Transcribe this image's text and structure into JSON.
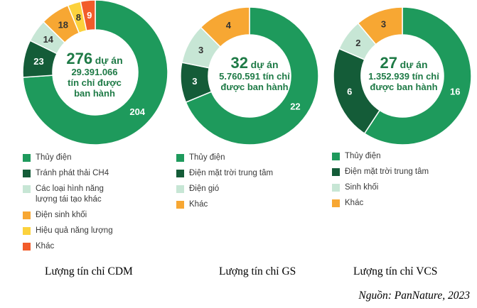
{
  "colors": {
    "green": "#1e9a5c",
    "dark_green": "#145c38",
    "light_green": "#c7e6d5",
    "orange": "#f7a733",
    "yellow": "#fcd23d",
    "red_orange": "#f25c2a",
    "center_text": "#1e7a46"
  },
  "chart_data": [
    {
      "type": "pie",
      "donut": true,
      "center": {
        "count": "276",
        "unit": "dự án",
        "line2": "29.391.066",
        "line3": "tín chỉ được",
        "line4": "ban hành"
      },
      "slices": [
        {
          "label": "Thủy điện",
          "value": 204,
          "color": "#1e9a5c"
        },
        {
          "label": "Tránh phát thải CH4",
          "value": 23,
          "color": "#145c38"
        },
        {
          "label": "Các loại hình năng lượng tái tạo khác",
          "value": 14,
          "color": "#c7e6d5"
        },
        {
          "label": "Điện sinh khối",
          "value": 18,
          "color": "#f7a733"
        },
        {
          "label": "Hiệu quả năng lượng",
          "value": 8,
          "color": "#fcd23d"
        },
        {
          "label": "Khác",
          "value": 9,
          "color": "#f25c2a"
        }
      ],
      "legend": [
        "Thủy điện",
        "Tránh phát thải CH4",
        "Các loại hình năng lượng tái tạo khác",
        "Điện sinh khối",
        "Hiệu quả năng lượng",
        "Khác"
      ],
      "caption": "Lượng tín chỉ CDM"
    },
    {
      "type": "pie",
      "donut": true,
      "center": {
        "count": "32",
        "unit": "dự án",
        "line2": "5.760.591 tín chỉ",
        "line3": "được ban hành"
      },
      "slices": [
        {
          "label": "Thủy điện",
          "value": 22,
          "color": "#1e9a5c"
        },
        {
          "label": "Điện mặt trời trung tâm",
          "value": 3,
          "color": "#145c38"
        },
        {
          "label": "Điện gió",
          "value": 3,
          "color": "#c7e6d5"
        },
        {
          "label": "Khác",
          "value": 4,
          "color": "#f7a733"
        }
      ],
      "legend": [
        "Thủy điện",
        "Điện mặt trời trung tâm",
        "Điện gió",
        "Khác"
      ],
      "caption": "Lượng tín chỉ GS"
    },
    {
      "type": "pie",
      "donut": true,
      "center": {
        "count": "27",
        "unit": "dự án",
        "line2": "1.352.939 tín chỉ",
        "line3": "được ban hành"
      },
      "slices": [
        {
          "label": "Thủy điện",
          "value": 16,
          "color": "#1e9a5c"
        },
        {
          "label": "Điện mặt trời trung tâm",
          "value": 6,
          "color": "#145c38"
        },
        {
          "label": "Sinh khối",
          "value": 2,
          "color": "#c7e6d5"
        },
        {
          "label": "Khác",
          "value": 3,
          "color": "#f7a733"
        }
      ],
      "legend": [
        "Thủy điện",
        "Điện mặt trời trung tâm",
        "Sinh khối",
        "Khác"
      ],
      "caption": "Lượng tín chỉ VCS"
    }
  ],
  "source": "Nguồn: PanNature, 2023"
}
